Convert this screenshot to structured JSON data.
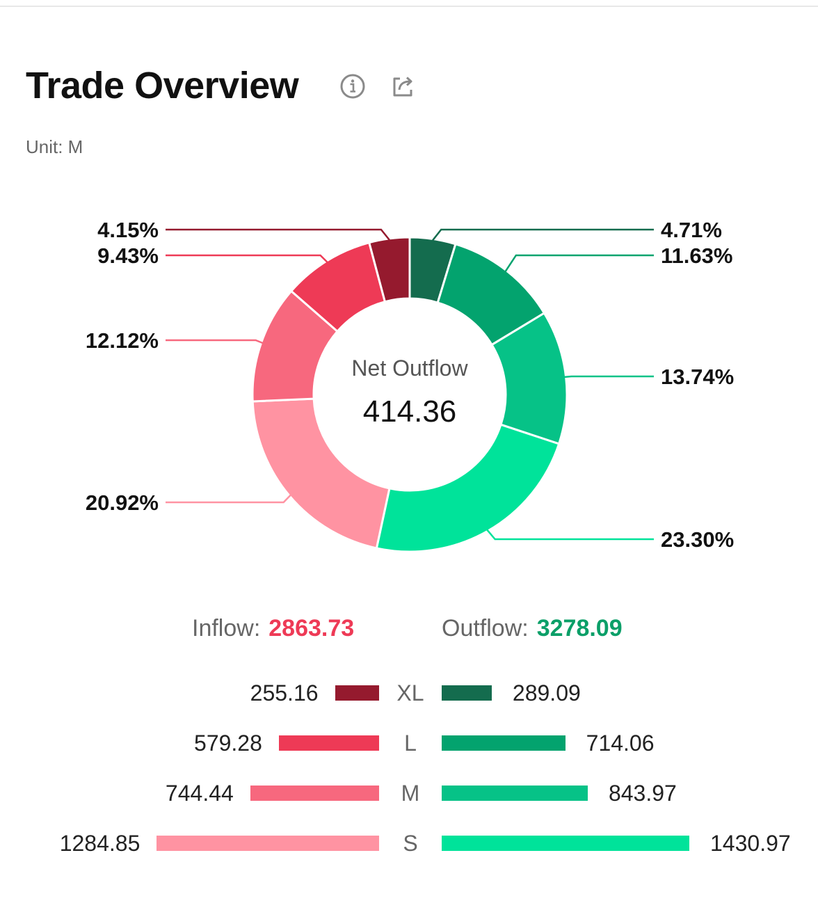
{
  "header": {
    "title": "Trade Overview",
    "unit": "Unit: M",
    "info_icon": "info-circle-icon",
    "share_icon": "share-export-icon"
  },
  "chart_data": {
    "type": "pie",
    "donut": true,
    "center_title": "Net Outflow",
    "center_value": "414.36",
    "slices": [
      {
        "side": "outflow",
        "size": "XL",
        "percent": 4.71,
        "label": "4.71%",
        "color": "#146C4E"
      },
      {
        "side": "outflow",
        "size": "L",
        "percent": 11.63,
        "label": "11.63%",
        "color": "#03A36E"
      },
      {
        "side": "outflow",
        "size": "M",
        "percent": 13.74,
        "label": "13.74%",
        "color": "#06C287"
      },
      {
        "side": "outflow",
        "size": "S",
        "percent": 23.3,
        "label": "23.30%",
        "color": "#00E39A"
      },
      {
        "side": "inflow",
        "size": "S",
        "percent": 20.92,
        "label": "20.92%",
        "color": "#FF93A2"
      },
      {
        "side": "inflow",
        "size": "M",
        "percent": 12.12,
        "label": "12.12%",
        "color": "#F7687E"
      },
      {
        "side": "inflow",
        "size": "L",
        "percent": 9.43,
        "label": "9.43%",
        "color": "#EE3A56"
      },
      {
        "side": "inflow",
        "size": "XL",
        "percent": 4.15,
        "label": "4.15%",
        "color": "#951A2E"
      }
    ]
  },
  "totals": {
    "inflow_label": "Inflow:",
    "inflow_value": "2863.73",
    "inflow_color": "#EE3A56",
    "outflow_label": "Outflow:",
    "outflow_value": "3278.09",
    "outflow_color": "#0B9F68"
  },
  "breakdown": {
    "max_value": 1430.97,
    "rows": [
      {
        "size": "XL",
        "inflow": 255.16,
        "inflow_text": "255.16",
        "outflow": 289.09,
        "outflow_text": "289.09",
        "inflow_color": "#951A2E",
        "outflow_color": "#146C4E"
      },
      {
        "size": "L",
        "inflow": 579.28,
        "inflow_text": "579.28",
        "outflow": 714.06,
        "outflow_text": "714.06",
        "inflow_color": "#EE3A56",
        "outflow_color": "#03A36E"
      },
      {
        "size": "M",
        "inflow": 744.44,
        "inflow_text": "744.44",
        "outflow": 843.97,
        "outflow_text": "843.97",
        "inflow_color": "#F7687E",
        "outflow_color": "#06C287"
      },
      {
        "size": "S",
        "inflow": 1284.85,
        "inflow_text": "1284.85",
        "outflow": 1430.97,
        "outflow_text": "1430.97",
        "inflow_color": "#FF93A2",
        "outflow_color": "#00E39A"
      }
    ]
  }
}
